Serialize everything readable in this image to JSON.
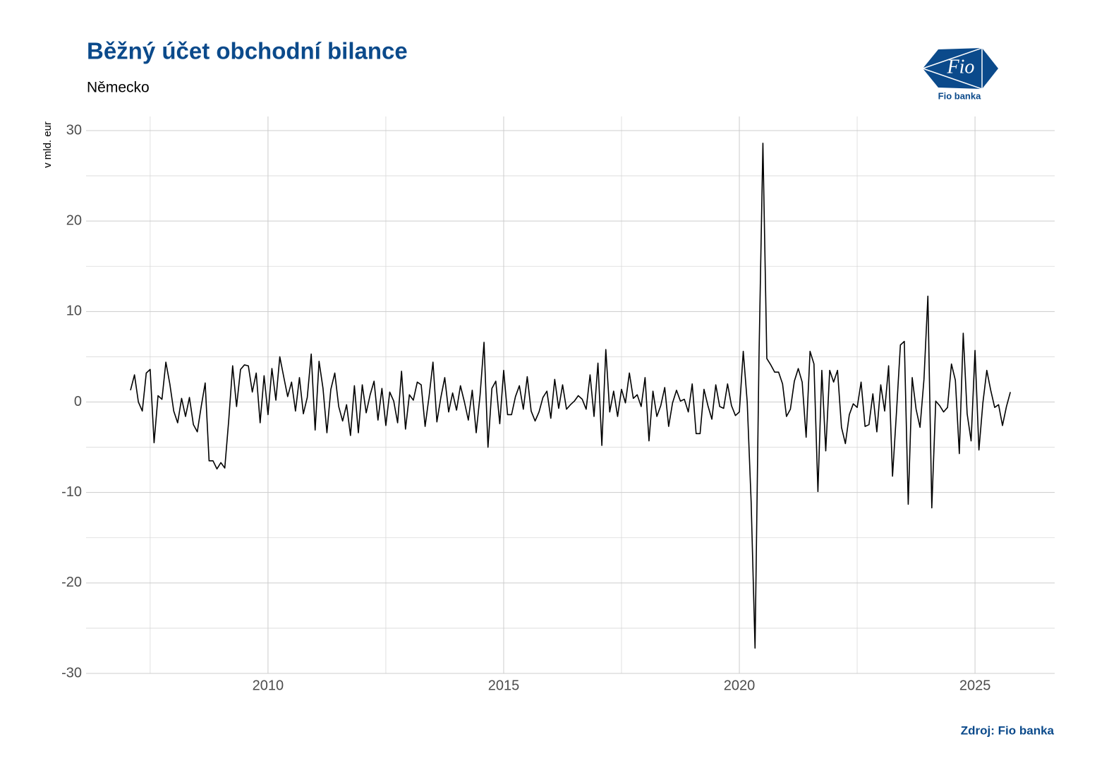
{
  "chart_data": {
    "type": "line",
    "title": "Běžný účet obchodní bilance",
    "subtitle": "Německo",
    "y_label": "v mld. eur",
    "source": "Zdroj: Fio banka",
    "logo": {
      "mark": "Fio",
      "name": "Fio banka"
    },
    "xlim": [
      2006.14,
      2026.69
    ],
    "ylim": [
      -30,
      31.56
    ],
    "xticks": [
      2010,
      2015,
      2020,
      2025
    ],
    "xminorticks": [
      2007.5,
      2012.5,
      2017.5,
      2022.5
    ],
    "yticks": [
      -30,
      -20,
      -10,
      0,
      10,
      20,
      30
    ],
    "yminorticks": [
      -25,
      -15,
      -5,
      5,
      15,
      25
    ],
    "grid": true,
    "x": [
      2007.083,
      2007.167,
      2007.25,
      2007.333,
      2007.417,
      2007.5,
      2007.583,
      2007.667,
      2007.75,
      2007.833,
      2007.917,
      2008,
      2008.083,
      2008.167,
      2008.25,
      2008.333,
      2008.417,
      2008.5,
      2008.583,
      2008.667,
      2008.75,
      2008.833,
      2008.917,
      2009,
      2009.083,
      2009.167,
      2009.25,
      2009.333,
      2009.417,
      2009.5,
      2009.583,
      2009.667,
      2009.75,
      2009.833,
      2009.917,
      2010,
      2010.083,
      2010.167,
      2010.25,
      2010.333,
      2010.417,
      2010.5,
      2010.583,
      2010.667,
      2010.75,
      2010.833,
      2010.917,
      2011,
      2011.083,
      2011.167,
      2011.25,
      2011.333,
      2011.417,
      2011.5,
      2011.583,
      2011.667,
      2011.75,
      2011.833,
      2011.917,
      2012,
      2012.083,
      2012.167,
      2012.25,
      2012.333,
      2012.417,
      2012.5,
      2012.583,
      2012.667,
      2012.75,
      2012.833,
      2012.917,
      2013,
      2013.083,
      2013.167,
      2013.25,
      2013.333,
      2013.417,
      2013.5,
      2013.583,
      2013.667,
      2013.75,
      2013.833,
      2013.917,
      2014,
      2014.083,
      2014.167,
      2014.25,
      2014.333,
      2014.417,
      2014.5,
      2014.583,
      2014.667,
      2014.75,
      2014.833,
      2014.917,
      2015,
      2015.083,
      2015.167,
      2015.25,
      2015.333,
      2015.417,
      2015.5,
      2015.583,
      2015.667,
      2015.75,
      2015.833,
      2015.917,
      2016,
      2016.083,
      2016.167,
      2016.25,
      2016.333,
      2016.417,
      2016.5,
      2016.583,
      2016.667,
      2016.75,
      2016.833,
      2016.917,
      2017,
      2017.083,
      2017.167,
      2017.25,
      2017.333,
      2017.417,
      2017.5,
      2017.583,
      2017.667,
      2017.75,
      2017.833,
      2017.917,
      2018,
      2018.083,
      2018.167,
      2018.25,
      2018.333,
      2018.417,
      2018.5,
      2018.583,
      2018.667,
      2018.75,
      2018.833,
      2018.917,
      2019,
      2019.083,
      2019.167,
      2019.25,
      2019.333,
      2019.417,
      2019.5,
      2019.583,
      2019.667,
      2019.75,
      2019.833,
      2019.917,
      2020,
      2020.083,
      2020.167,
      2020.25,
      2020.333,
      2020.417,
      2020.5,
      2020.583,
      2020.667,
      2020.75,
      2020.833,
      2020.917,
      2021,
      2021.083,
      2021.167,
      2021.25,
      2021.333,
      2021.417,
      2021.5,
      2021.583,
      2021.667,
      2021.75,
      2021.833,
      2021.917,
      2022,
      2022.083,
      2022.167,
      2022.25,
      2022.333,
      2022.417,
      2022.5,
      2022.583,
      2022.667,
      2022.75,
      2022.833,
      2022.917,
      2023,
      2023.083,
      2023.167,
      2023.25,
      2023.333,
      2023.417,
      2023.5,
      2023.583,
      2023.667,
      2023.75,
      2023.833,
      2023.917,
      2024,
      2024.083,
      2024.167,
      2024.25,
      2024.333,
      2024.417,
      2024.5,
      2024.583,
      2024.667,
      2024.75,
      2024.833,
      2024.917,
      2025,
      2025.083,
      2025.167,
      2025.25,
      2025.333,
      2025.417,
      2025.5,
      2025.583,
      2025.667,
      2025.75
    ],
    "series": [
      {
        "color": "#000000",
        "values": [
          1.3,
          3.0,
          0,
          -1.0,
          3.2,
          3.6,
          -4.5,
          0.7,
          0.3,
          4.4,
          2,
          -1,
          -2.3,
          0.4,
          -1.6,
          0.5,
          -2.5,
          -3.3,
          -0.5,
          2.1,
          -6.5,
          -6.5,
          -7.4,
          -6.7,
          -7.3,
          -2,
          4,
          -0.5,
          3.6,
          4.1,
          4.0,
          1.1,
          3.2,
          -2.3,
          2.9,
          -1.4,
          3.7,
          0.2,
          5.0,
          2.8,
          0.6,
          2.2,
          -1,
          2.7,
          -1.3,
          0.5,
          5.3,
          -3.1,
          4.5,
          1.5,
          -3.4,
          1.4,
          3.2,
          -0.5,
          -2.1,
          -0.3,
          -3.7,
          1.8,
          -3.4,
          1.9,
          -1.2,
          0.8,
          2.3,
          -2,
          1.5,
          -2.6,
          1.1,
          0.1,
          -2.3,
          3.4,
          -3,
          0.8,
          0.2,
          2.2,
          1.9,
          -2.7,
          0.6,
          4.4,
          -2.2,
          0.5,
          2.7,
          -1.1,
          1.0,
          -0.9,
          1.8,
          0,
          -2,
          1.3,
          -3.4,
          0.8,
          6.6,
          -5,
          1.5,
          2.3,
          -2.4,
          3.5,
          -1.4,
          -1.4,
          0.6,
          1.8,
          -0.8,
          2.8,
          -1,
          -2.1,
          -1.1,
          0.5,
          1.2,
          -1.8,
          2.5,
          -0.7,
          1.9,
          -0.8,
          -0.3,
          0.1,
          0.7,
          0.3,
          -0.8,
          3.0,
          -1.6,
          4.3,
          -4.8,
          5.8,
          -1.1,
          1.2,
          -1.6,
          1.4,
          -0.1,
          3.2,
          0.4,
          0.8,
          -0.5,
          2.7,
          -4.3,
          1.2,
          -1.6,
          -0.4,
          1.6,
          -2.7,
          -0.1,
          1.3,
          0.1,
          0.3,
          -1.1,
          2,
          -3.5,
          -3.5,
          1.4,
          -0.4,
          -1.9,
          1.9,
          -0.5,
          -0.7,
          2,
          -0.4,
          -1.5,
          -1.1,
          5.6,
          0,
          -11,
          -27.2,
          5,
          28.6,
          4.8,
          4.1,
          3.3,
          3.3,
          2,
          -1.6,
          -0.8,
          2.3,
          3.7,
          2.2,
          -3.9,
          5.6,
          4.2,
          -9.9,
          3.5,
          -5.4,
          3.5,
          2.2,
          3.5,
          -2.8,
          -4.6,
          -1.4,
          -0.2,
          -0.6,
          2.2,
          -2.7,
          -2.5,
          0.9,
          -3.3,
          1.9,
          -1,
          4,
          -8.2,
          -1.2,
          6.3,
          6.7,
          -11.3,
          2.7,
          -0.8,
          -2.8,
          2.5,
          11.7,
          -11.7,
          0.1,
          -0.4,
          -1.1,
          -0.6,
          4.2,
          2.4,
          -5.7,
          7.6,
          -1.3,
          -4.3,
          5.7,
          -5.3,
          -0.1,
          3.5,
          1.3,
          -0.6,
          -0.3,
          -2.6,
          -0.5,
          1.1
        ]
      }
    ]
  }
}
